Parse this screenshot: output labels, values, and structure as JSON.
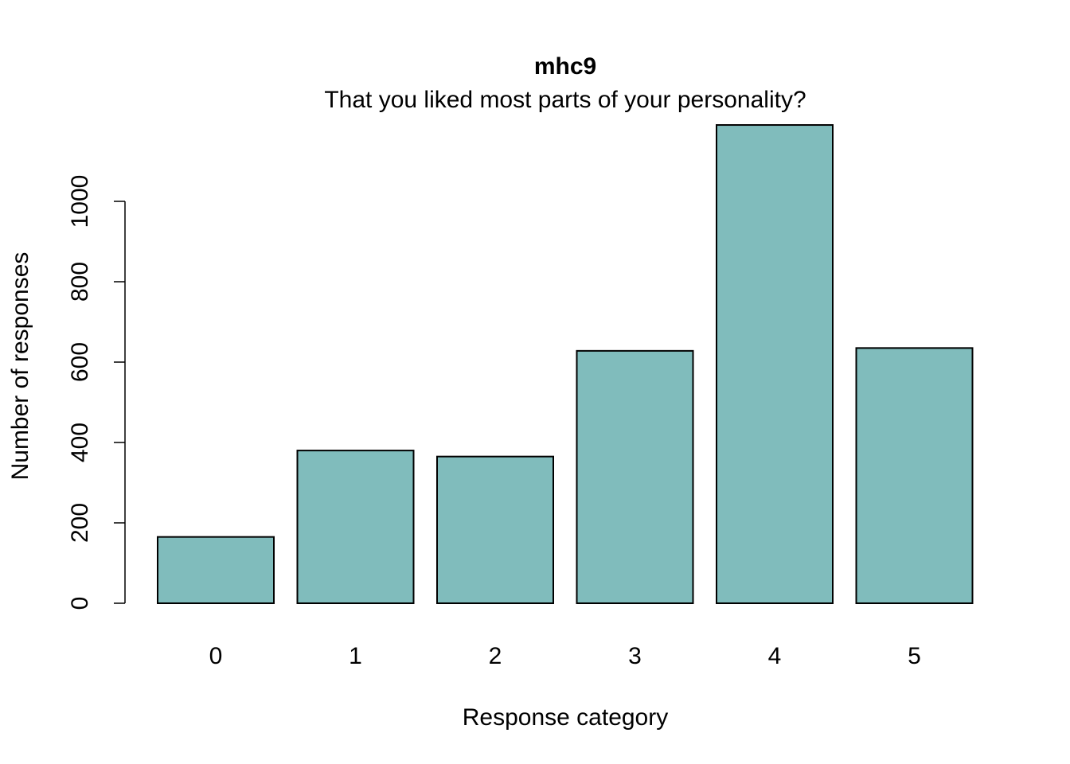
{
  "chart_data": {
    "type": "bar",
    "title": "mhc9",
    "subtitle": "That you liked most parts of your personality?",
    "xlabel": "Response category",
    "ylabel": "Number of responses",
    "categories": [
      "0",
      "1",
      "2",
      "3",
      "4",
      "5"
    ],
    "values": [
      165,
      380,
      365,
      628,
      1190,
      635
    ],
    "ylim": [
      0,
      1190
    ],
    "yticks": [
      0,
      200,
      400,
      600,
      800,
      1000
    ],
    "ytick_labels": [
      "0",
      "200",
      "400",
      "600",
      "800",
      "1000"
    ],
    "bar_color": "#80BCBC",
    "grid": false,
    "legend": "none"
  }
}
